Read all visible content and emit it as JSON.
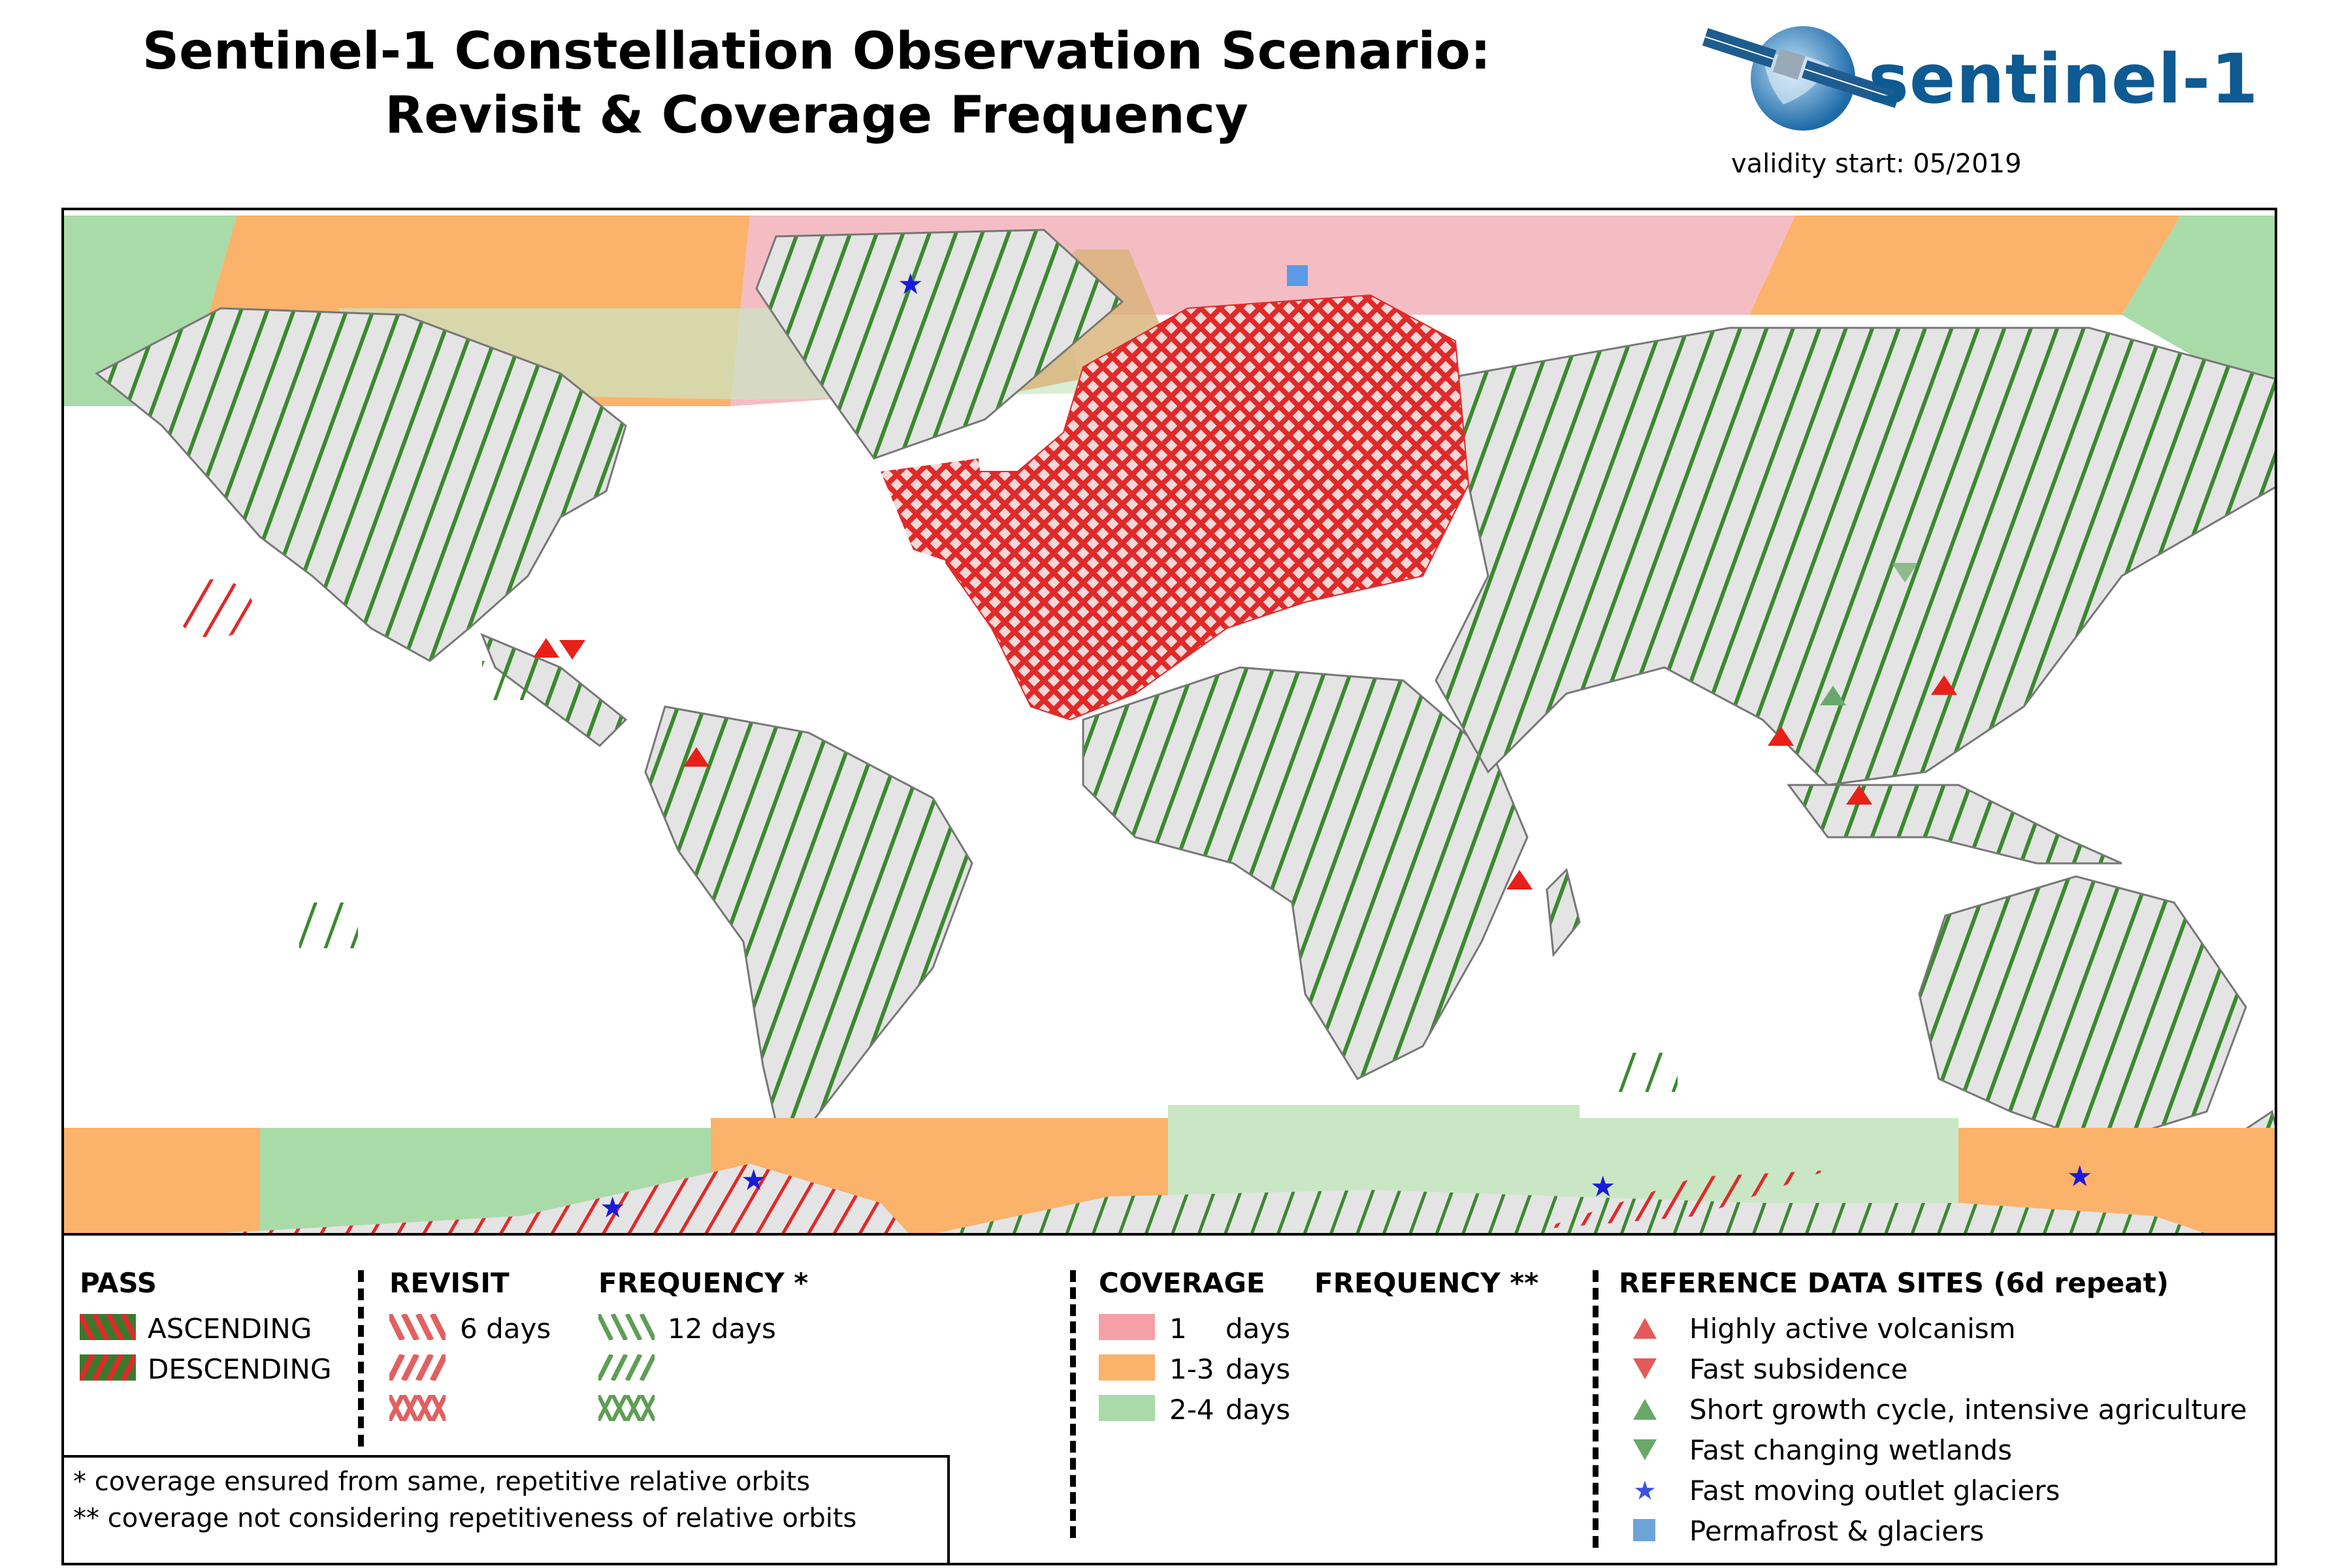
{
  "header": {
    "title_line1": "Sentinel-1 Constellation Observation Scenario:",
    "title_line2": "Revisit & Coverage Frequency",
    "logo_text": "sentinel-1",
    "validity": "validity start: 05/2019"
  },
  "colors": {
    "coverage_1_day": "#f4a0a6",
    "coverage_1_3_days": "#fbb26b",
    "coverage_2_4_days": "#a9dba8",
    "revisit_6_days": "#e02a2a",
    "frequency_12_days": "#3a8a2e",
    "land_fill": "#e4e4e4",
    "volcano_marker": "#e8201a",
    "agriculture_marker": "#6aa86a",
    "glacier_marker": "#1a1ad8",
    "permafrost_marker": "#5a9ae6"
  },
  "legend": {
    "pass": {
      "heading": "PASS",
      "ascending": "ASCENDING",
      "descending": "DESCENDING"
    },
    "revisit": {
      "heading": "REVISIT",
      "label": "6 days"
    },
    "frequency": {
      "heading": "FREQUENCY *",
      "label": "12 days"
    },
    "coverage": {
      "heading": "COVERAGE",
      "heading2": "FREQUENCY  **",
      "items": [
        {
          "value": "1",
          "unit": "days"
        },
        {
          "value": "1-3",
          "unit": "days"
        },
        {
          "value": "2-4",
          "unit": "days"
        }
      ]
    },
    "reference": {
      "heading": "REFERENCE DATA SITES (6d repeat)",
      "items": [
        {
          "label": "Highly active volcanism",
          "icon": "triangle-up-icon"
        },
        {
          "label": "Fast subsidence",
          "icon": "triangle-down-icon"
        },
        {
          "label": "Short growth cycle, intensive agriculture",
          "icon": "triangle-up-icon"
        },
        {
          "label": "Fast changing wetlands",
          "icon": "triangle-down-icon"
        },
        {
          "label": "Fast moving outlet glaciers",
          "icon": "star-icon"
        },
        {
          "label": "Permafrost & glaciers",
          "icon": "square-icon"
        }
      ]
    },
    "notes": [
      "*   coverage ensured from same, repetitive relative orbits",
      "** coverage not considering repetitiveness of relative orbits"
    ]
  }
}
